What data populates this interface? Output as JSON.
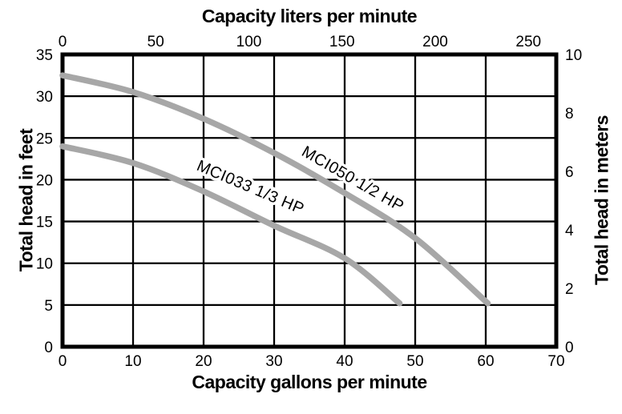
{
  "chart_data": {
    "type": "line",
    "title_top": "Capacity liters per minute",
    "xlabel_bottom": "Capacity gallons per minute",
    "ylabel_left": "Total head in feet",
    "ylabel_right": "Total head in meters",
    "grid": "on",
    "legend_position": "labels-on-curves",
    "axes": {
      "gallons_per_minute": {
        "min": 0,
        "max": 70,
        "ticks": [
          0,
          10,
          20,
          30,
          40,
          50,
          60,
          70
        ]
      },
      "liters_per_minute": {
        "ticks": [
          0,
          50,
          100,
          150,
          200,
          250
        ],
        "liters_per_gallon": 3.785
      },
      "feet": {
        "min": 0,
        "max": 35,
        "ticks": [
          0,
          5,
          10,
          15,
          20,
          25,
          30,
          35
        ]
      },
      "meters": {
        "min": 0,
        "max": 10,
        "ticks": [
          0,
          2,
          4,
          6,
          8,
          10
        ]
      }
    },
    "colors": {
      "curve": "#a7a7a7",
      "grid": "#000000",
      "text": "#000000",
      "background": "#ffffff"
    },
    "series": [
      {
        "name": "MCI050 1/2 HP",
        "points_gpm_feet": [
          [
            0,
            32.5
          ],
          [
            10,
            30.5
          ],
          [
            20,
            27.3
          ],
          [
            30,
            23.2
          ],
          [
            40,
            18.4
          ],
          [
            50,
            13.0
          ],
          [
            60.3,
            5.2
          ]
        ],
        "label": {
          "text": "MCI050 1/2 HP",
          "x_gpm": 41.1,
          "y_feet": 20.0,
          "angle_deg": 30
        }
      },
      {
        "name": "MCI033 1/3 HP",
        "points_gpm_feet": [
          [
            0,
            24.0
          ],
          [
            10,
            22.0
          ],
          [
            20,
            18.6
          ],
          [
            30,
            14.5
          ],
          [
            40,
            10.6
          ],
          [
            47.8,
            5.2
          ]
        ],
        "label": {
          "text": "MCI033 1/3 HP",
          "x_gpm": 26.6,
          "y_feet": 19.0,
          "angle_deg": 23
        }
      }
    ]
  }
}
